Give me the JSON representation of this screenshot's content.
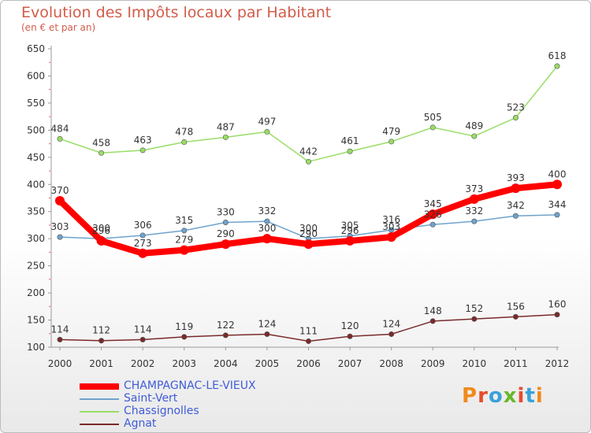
{
  "header": {
    "title": "Evolution des Impôts locaux par Habitant",
    "subtitle": "(en € et par an)"
  },
  "logo": {
    "text": "Proxiti",
    "colors": [
      "#f08a1c",
      "#e84b2b",
      "#3aa1d8",
      "#6ab82c",
      "#e84b2b",
      "#3aa1d8",
      "#f08a1c"
    ]
  },
  "chart_data": {
    "type": "line",
    "x": [
      "2000",
      "2001",
      "2002",
      "2003",
      "2004",
      "2005",
      "2006",
      "2007",
      "2008",
      "2009",
      "2010",
      "2011",
      "2012"
    ],
    "ylim": [
      100,
      650
    ],
    "yticks": [
      100,
      150,
      200,
      250,
      300,
      350,
      400,
      450,
      500,
      550,
      600,
      650
    ],
    "grid": false,
    "legend_position": "bottom-left",
    "series": [
      {
        "name": "CHAMPAGNAC-LE-VIEUX",
        "color": "#ff0000",
        "width": 8,
        "values": [
          370,
          296,
          273,
          279,
          290,
          300,
          290,
          296,
          303,
          345,
          373,
          393,
          400
        ]
      },
      {
        "name": "Saint-Vert",
        "color": "#6fa3cc",
        "width": 1.5,
        "values": [
          303,
          300,
          306,
          315,
          330,
          332,
          300,
          305,
          316,
          326,
          332,
          342,
          344
        ]
      },
      {
        "name": "Chassignolles",
        "color": "#99dd66",
        "width": 1.5,
        "values": [
          484,
          458,
          463,
          478,
          487,
          497,
          442,
          461,
          479,
          505,
          489,
          523,
          618
        ]
      },
      {
        "name": "Agnat",
        "color": "#7a2a2a",
        "width": 1.5,
        "values": [
          114,
          112,
          114,
          119,
          122,
          124,
          111,
          120,
          124,
          148,
          152,
          156,
          160
        ]
      }
    ]
  }
}
